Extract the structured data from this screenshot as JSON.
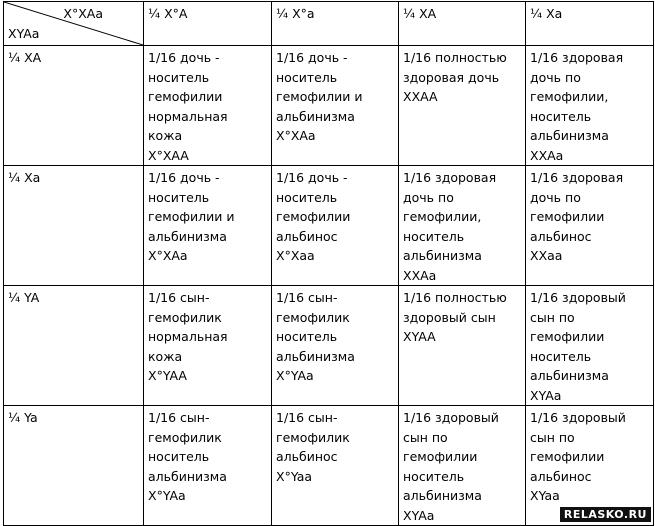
{
  "header": {
    "corner_mother": "X°XAa",
    "corner_father": "XYAa",
    "columns": [
      "¼ X°A",
      "¼ X°a",
      "¼ XA",
      "¼ Xa"
    ]
  },
  "rows": [
    {
      "label": "¼ XA",
      "cells": [
        [
          "1/16 дочь -",
          "носитель",
          "гемофилии",
          "нормальная",
          "кожа",
          "X°XAA"
        ],
        [
          "1/16 дочь -",
          "носитель",
          "гемофилии и",
          "альбинизма",
          "X°XAa"
        ],
        [
          "1/16 полностью",
          "здоровая дочь",
          "XXAA"
        ],
        [
          "1/16 здоровая",
          "дочь по",
          "гемофилии,",
          "носитель",
          "альбинизма",
          " XXAa"
        ]
      ]
    },
    {
      "label": "¼ Xa",
      "cells": [
        [
          "1/16 дочь -",
          "носитель",
          "гемофилии и",
          "альбинизма",
          " X°XAa"
        ],
        [
          "1/16 дочь -",
          "носитель",
          "гемофилии",
          "альбинос",
          "X°Xaa"
        ],
        [
          "1/16 здоровая",
          "дочь по",
          "гемофилии,",
          "носитель",
          "альбинизма",
          "XXAa"
        ],
        [
          "1/16 здоровая",
          "дочь по",
          "гемофилии",
          "альбинос",
          "XXaa"
        ]
      ]
    },
    {
      "label": "¼ YA",
      "cells": [
        [
          "1/16 сын-",
          "гемофилик",
          "нормальная",
          "кожа",
          "X°YAA"
        ],
        [
          "1/16 сын-",
          "гемофилик",
          "носитель",
          "альбинизма",
          "X°YAa"
        ],
        [
          "1/16 полностью",
          "здоровый сын",
          " XYAA"
        ],
        [
          "1/16 здоровый",
          "сын по",
          "гемофилии",
          "носитель",
          "альбинизма",
          "XYAa"
        ]
      ]
    },
    {
      "label": "¼ Ya",
      "cells": [
        [
          "1/16 сын-",
          "гемофилик",
          "носитель",
          "альбинизма",
          "X°YAa"
        ],
        [
          "1/16 сын-",
          "гемофилик",
          "альбинос",
          " X°Yaa"
        ],
        [
          "1/16 здоровый",
          "сын по",
          "гемофилии",
          "носитель",
          "альбинизма",
          "XYAa"
        ],
        [
          "1/16 здоровый",
          "сын по",
          "гемофилии",
          "альбинос",
          "XYaa"
        ]
      ]
    }
  ],
  "watermark": "RELASKO.RU"
}
